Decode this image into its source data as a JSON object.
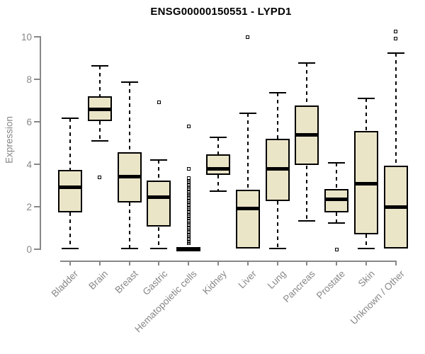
{
  "title": "ENSG00000150551 - LYPD1",
  "colors": {
    "background": "#ffffff",
    "box_fill": "#EBE5C7",
    "box_border": "#000000",
    "median": "#000000",
    "whisker": "#000000",
    "axis": "#878787",
    "tick_label": "#878787",
    "title": "#000000",
    "outlier_fill": "#ffffff"
  },
  "chart_data": {
    "type": "boxplot",
    "title": "ENSG00000150551 - LYPD1",
    "xlabel": "",
    "ylabel": "Expression",
    "ylim": [
      0,
      10.4
    ],
    "yticks": [
      0,
      2,
      4,
      6,
      8,
      10
    ],
    "grid": false,
    "legend": false,
    "categories": [
      "Bladder",
      "Brain",
      "Breast",
      "Gastric",
      "Hematopoietic cells",
      "Kidney",
      "Liver",
      "Lung",
      "Pancreas",
      "Prostate",
      "Skin",
      "Unknown / Other"
    ],
    "series": [
      {
        "name": "Bladder",
        "whislo": 0.05,
        "q1": 1.73,
        "med": 2.93,
        "q3": 3.72,
        "whishi": 6.18,
        "outliers": []
      },
      {
        "name": "Brain",
        "whislo": 5.1,
        "q1": 6.05,
        "med": 6.57,
        "q3": 7.2,
        "whishi": 8.65,
        "outliers": [
          3.37
        ]
      },
      {
        "name": "Breast",
        "whislo": 0.05,
        "q1": 2.2,
        "med": 3.42,
        "q3": 4.56,
        "whishi": 7.87,
        "outliers": []
      },
      {
        "name": "Gastric",
        "whislo": 0.05,
        "q1": 1.05,
        "med": 2.45,
        "q3": 3.24,
        "whishi": 4.2,
        "outliers": [
          6.92
        ]
      },
      {
        "name": "Hematopoietic cells",
        "whislo": 0.02,
        "q1": 0.02,
        "med": 0.02,
        "q3": 0.02,
        "whishi": 0.02,
        "outliers": [
          0.28,
          0.335,
          0.39,
          0.445,
          0.5,
          0.555,
          0.61,
          0.665,
          0.72,
          0.775,
          0.83,
          0.885,
          0.94,
          0.995,
          1.05,
          1.105,
          1.16,
          1.215,
          1.27,
          1.325,
          1.38,
          1.435,
          1.49,
          1.545,
          1.6,
          1.655,
          1.71,
          1.765,
          1.82,
          1.875,
          1.93,
          1.985,
          2.04,
          2.095,
          2.15,
          2.205,
          2.26,
          2.315,
          2.37,
          2.425,
          2.48,
          2.535,
          2.59,
          2.645,
          2.7,
          2.755,
          2.81,
          2.865,
          2.92,
          2.975,
          3.03,
          3.085,
          3.14,
          3.195,
          3.25,
          3.305,
          3.36,
          3.8,
          5.8
        ]
      },
      {
        "name": "Kidney",
        "whislo": 2.75,
        "q1": 3.5,
        "med": 3.8,
        "q3": 4.48,
        "whishi": 5.27,
        "outliers": []
      },
      {
        "name": "Liver",
        "whislo": 0.02,
        "q1": 0.02,
        "med": 1.93,
        "q3": 2.79,
        "whishi": 6.4,
        "outliers": [
          10.0
        ]
      },
      {
        "name": "Lung",
        "whislo": 0.05,
        "q1": 2.26,
        "med": 3.8,
        "q3": 5.2,
        "whishi": 7.38,
        "outliers": []
      },
      {
        "name": "Pancreas",
        "whislo": 1.35,
        "q1": 3.95,
        "med": 5.38,
        "q3": 6.76,
        "whishi": 8.78,
        "outliers": []
      },
      {
        "name": "Prostate",
        "whislo": 1.25,
        "q1": 1.73,
        "med": 2.35,
        "q3": 2.84,
        "whishi": 4.08,
        "outliers": [
          0.0
        ]
      },
      {
        "name": "Skin",
        "whislo": 0.02,
        "q1": 0.7,
        "med": 3.1,
        "q3": 5.58,
        "whishi": 7.1,
        "outliers": []
      },
      {
        "name": "Unknown / Other",
        "whislo": 0.02,
        "q1": 0.02,
        "med": 2.0,
        "q3": 3.94,
        "whishi": 9.25,
        "outliers": [
          9.93,
          10.25
        ]
      }
    ]
  }
}
